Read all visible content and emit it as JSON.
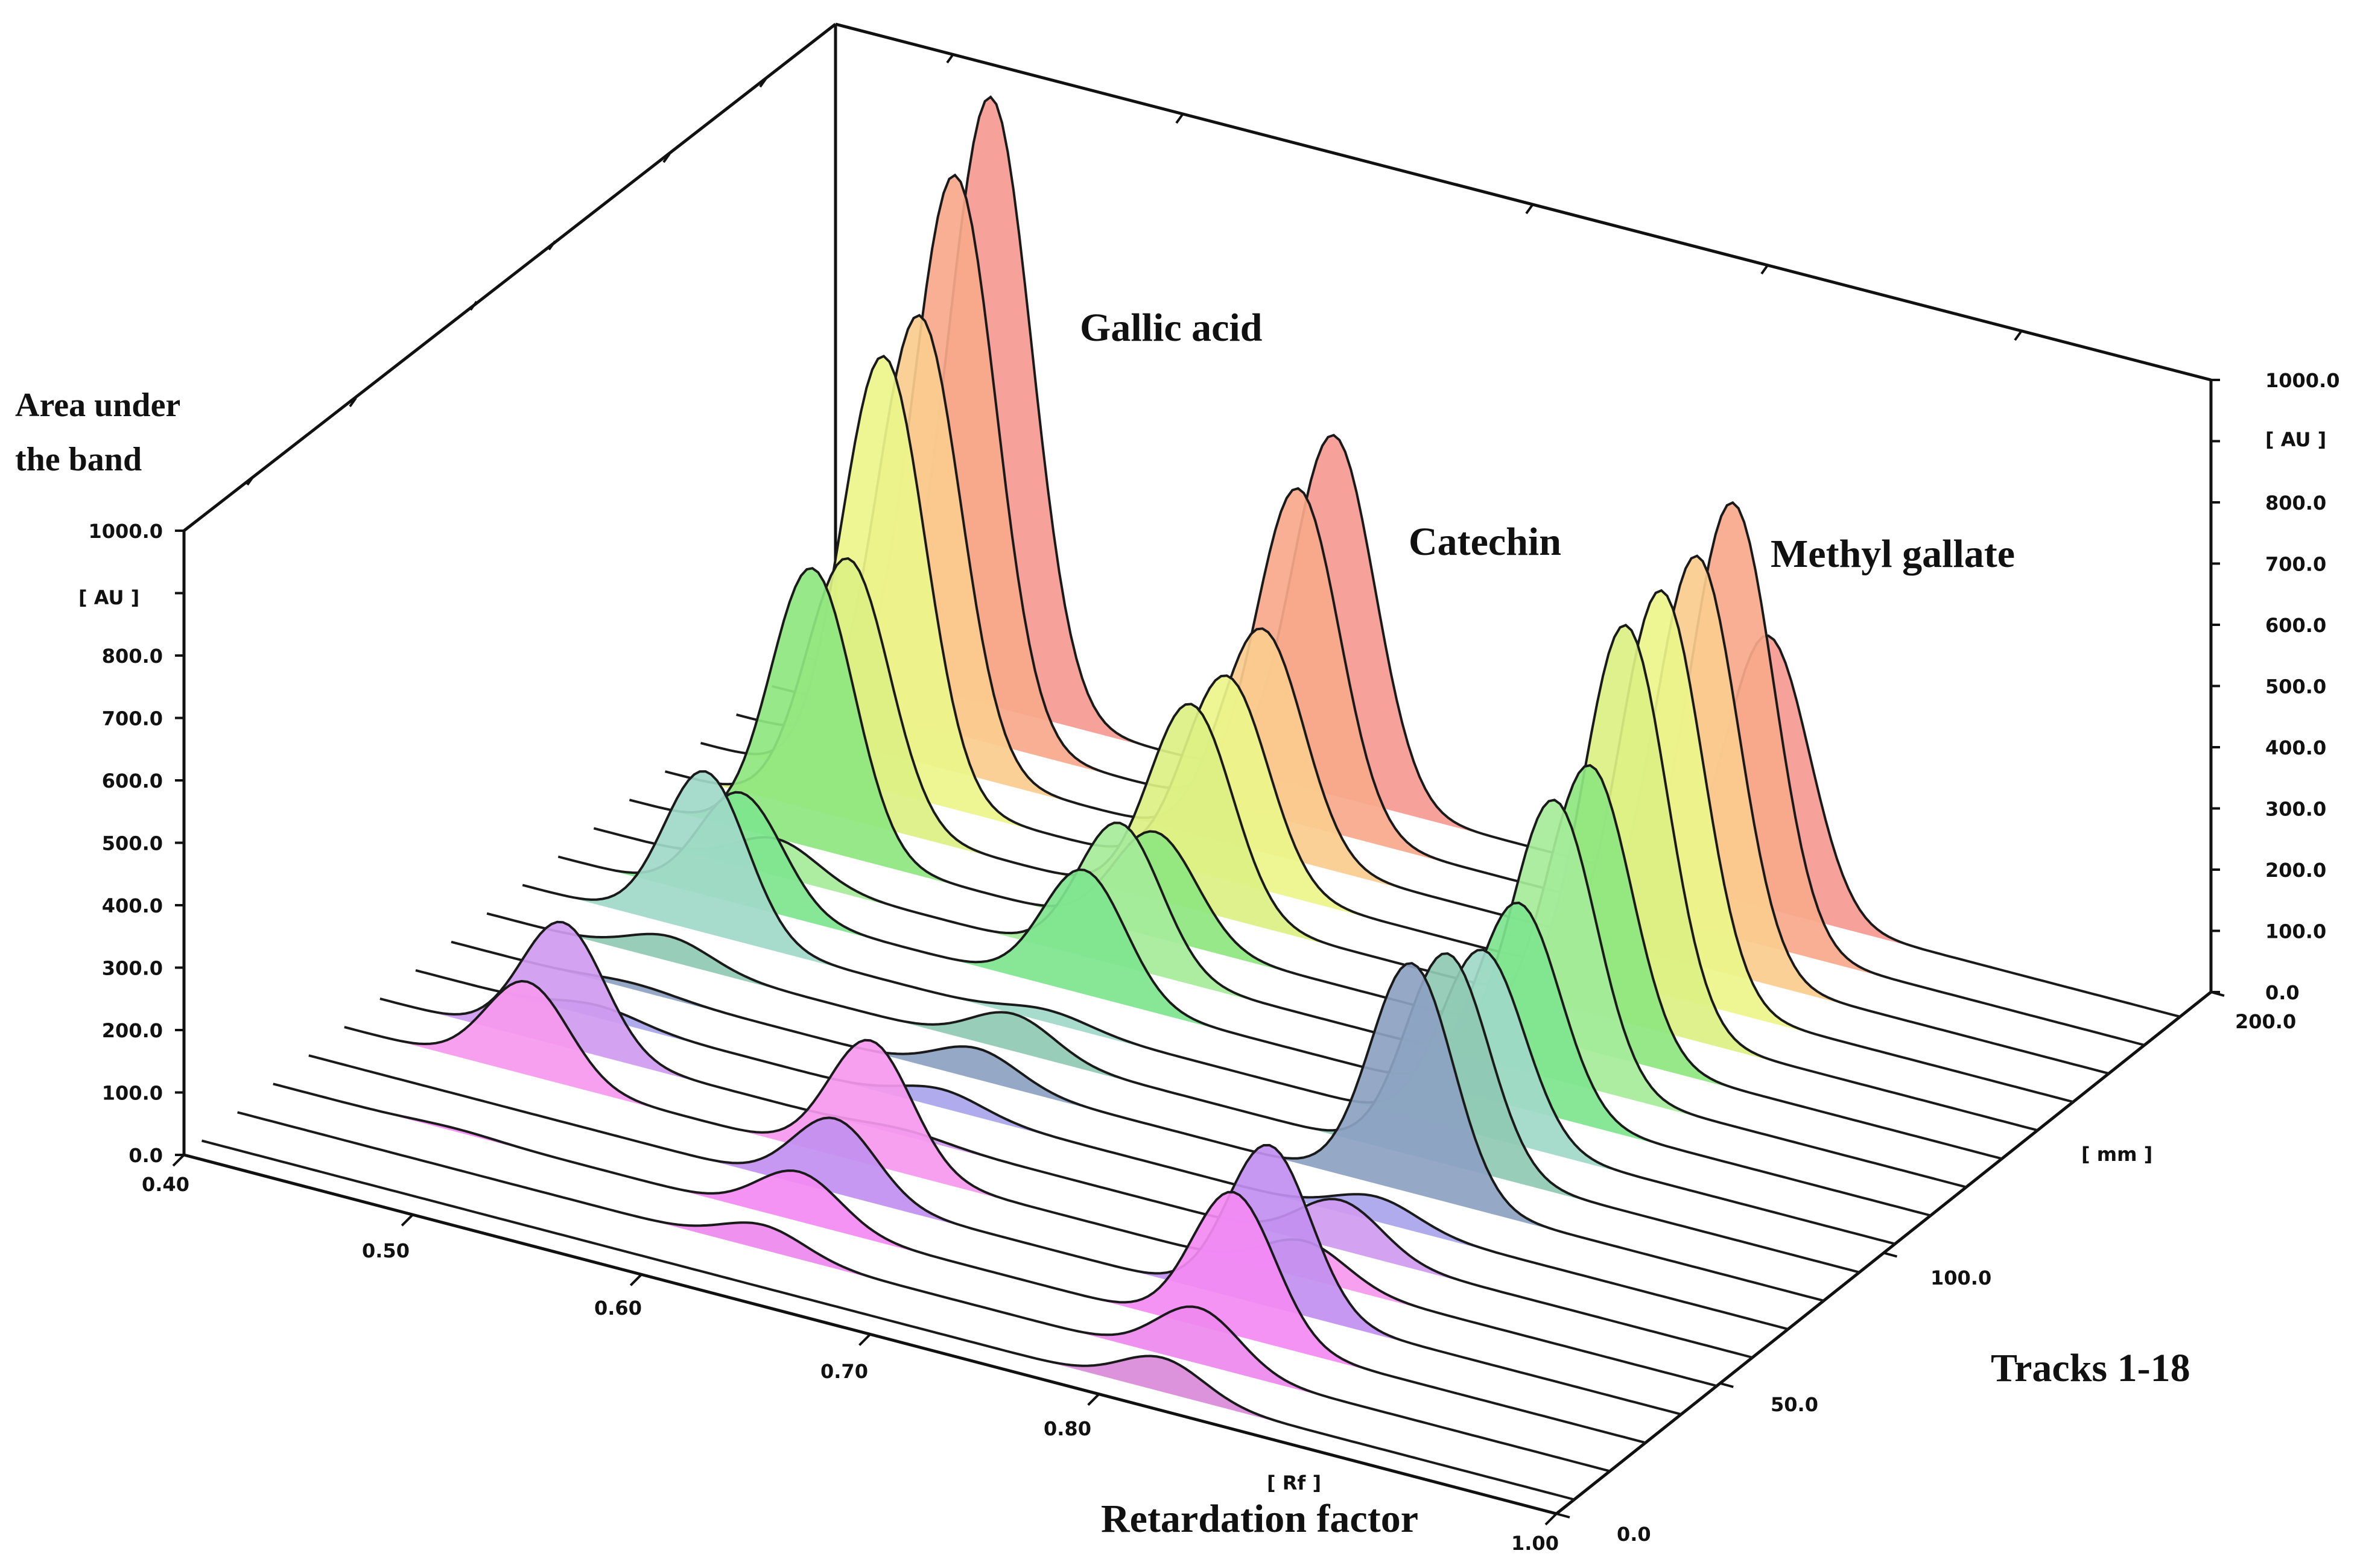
{
  "chart_data": {
    "type": "3d-waterfall",
    "title": "",
    "peak_labels": [
      "Gallic acid",
      "Catechin",
      "Methyl gallate"
    ],
    "z_axis": {
      "label_lines": [
        "Area under",
        "the band"
      ],
      "unit": "[ AU ]",
      "range": [
        0,
        1000
      ],
      "ticks": [
        "0.0",
        "100.0",
        "200.0",
        "300.0",
        "400.0",
        "500.0",
        "600.0",
        "700.0",
        "800.0",
        "1000.0"
      ],
      "right_ticks": [
        "0.0",
        "100.0",
        "200.0",
        "300.0",
        "400.0",
        "500.0",
        "600.0",
        "700.0",
        "800.0",
        "1000.0"
      ]
    },
    "x_axis": {
      "label": "Retardation factor",
      "unit": "[ Rf ]",
      "range": [
        0.4,
        1.0
      ],
      "ticks": [
        "0.40",
        "0.50",
        "0.60",
        "0.70",
        "0.80",
        "1.00"
      ]
    },
    "y_axis": {
      "label": "Tracks 1-18",
      "unit": "[ mm ]",
      "range": [
        0,
        200
      ],
      "ticks": [
        "0.0",
        "50.0",
        "100.0",
        "200.0"
      ]
    },
    "peak_rf": [
      0.48,
      0.63,
      0.82
    ],
    "series": [
      {
        "name": "Track 1",
        "heights": [
          0,
          0,
          55
        ],
        "color": "#d98ad9"
      },
      {
        "name": "Track 2",
        "heights": [
          0,
          40,
          90
        ],
        "color": "#ee88ee"
      },
      {
        "name": "Track 3",
        "heights": [
          5,
          80,
          230
        ],
        "color": "#f48af4"
      },
      {
        "name": "Track 4",
        "heights": [
          0,
          120,
          260
        ],
        "color": "#c28ff0"
      },
      {
        "name": "Track 5",
        "heights": [
          150,
          200,
          60
        ],
        "color": "#f598ee"
      },
      {
        "name": "Track 6",
        "heights": [
          200,
          10,
          80
        ],
        "color": "#cf9af0"
      },
      {
        "name": "Track 7",
        "heights": [
          20,
          30,
          40
        ],
        "color": "#a8a4ea"
      },
      {
        "name": "Track 8",
        "heights": [
          10,
          50,
          370
        ],
        "color": "#8ca2c2"
      },
      {
        "name": "Track 9",
        "heights": [
          40,
          60,
          340
        ],
        "color": "#8fc9b4"
      },
      {
        "name": "Track 10",
        "heights": [
          260,
          20,
          300
        ],
        "color": "#9fd9c8"
      },
      {
        "name": "Track 11",
        "heights": [
          180,
          200,
          330
        ],
        "color": "#7ee58e"
      },
      {
        "name": "Track 12",
        "heights": [
          60,
          230,
          450
        ],
        "color": "#a5ec9a"
      },
      {
        "name": "Track 13",
        "heights": [
          450,
          170,
          460
        ],
        "color": "#8ee67f"
      },
      {
        "name": "Track 14",
        "heights": [
          420,
          330,
          640
        ],
        "color": "#dcf082"
      },
      {
        "name": "Track 15",
        "heights": [
          700,
          330,
          650
        ],
        "color": "#ebf58a"
      },
      {
        "name": "Track 16",
        "heights": [
          720,
          360,
          660
        ],
        "color": "#fbcc8e"
      },
      {
        "name": "Track 17",
        "heights": [
          900,
          540,
          700
        ],
        "color": "#f7a88a"
      },
      {
        "name": "Track 18",
        "heights": [
          980,
          580,
          440
        ],
        "color": "#f59a92"
      }
    ]
  }
}
